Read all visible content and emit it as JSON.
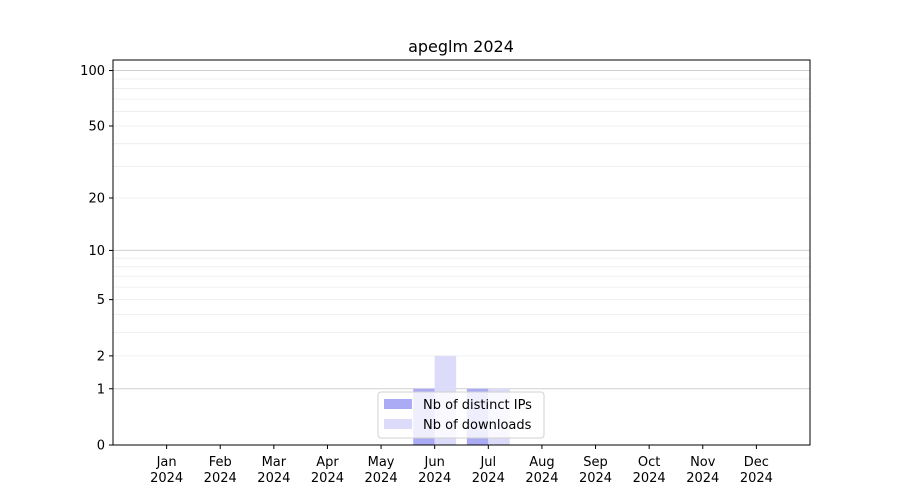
{
  "chart_data": {
    "type": "bar",
    "title": "apeglm 2024",
    "xlabel": "",
    "ylabel": "",
    "categories": [
      "Jan\n2024",
      "Feb\n2024",
      "Mar\n2024",
      "Apr\n2024",
      "May\n2024",
      "Jun\n2024",
      "Jul\n2024",
      "Aug\n2024",
      "Sep\n2024",
      "Oct\n2024",
      "Nov\n2024",
      "Dec\n2024"
    ],
    "y_scale": "log(1+y)",
    "ylim": [
      0,
      114
    ],
    "yticks": [
      0,
      1,
      2,
      5,
      10,
      20,
      50,
      100
    ],
    "grid": true,
    "legend_position": "lower center",
    "series": [
      {
        "name": "Nb of distinct IPs",
        "color": "#aaaaf5",
        "values": [
          0,
          0,
          0,
          0,
          0,
          1,
          1,
          0,
          0,
          0,
          0,
          0
        ]
      },
      {
        "name": "Nb of downloads",
        "color": "#dcdcfa",
        "values": [
          0,
          0,
          0,
          0,
          0,
          2,
          1,
          0,
          0,
          0,
          0,
          0
        ]
      }
    ]
  }
}
